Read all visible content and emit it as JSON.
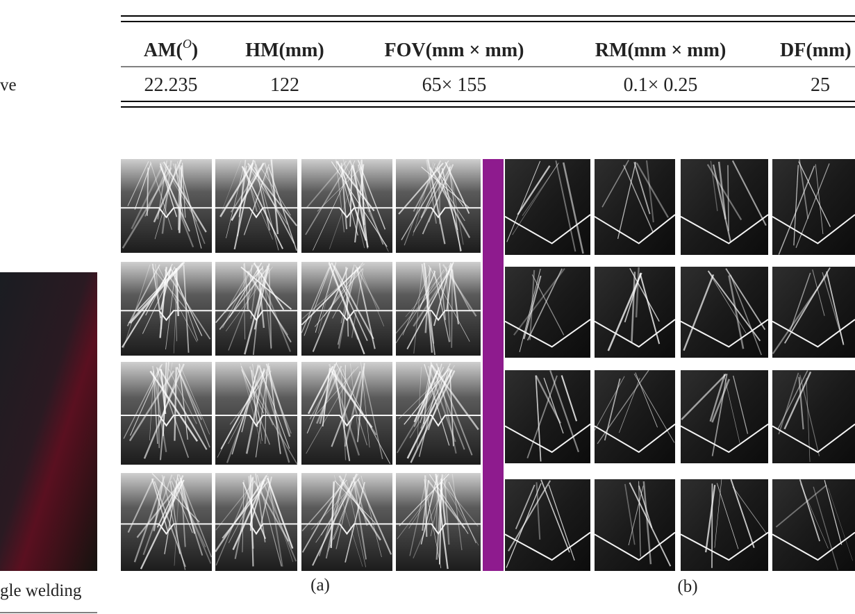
{
  "left_fragment_top": "ve",
  "left_fragment_caption": "gle welding",
  "table": {
    "headers": [
      {
        "text": "AM(",
        "sup": "O",
        "end": ")"
      },
      "HM(mm)",
      "FOV(mm × mm)",
      "RM(mm × mm)",
      "DF(mm)"
    ],
    "rows": [
      [
        "22.235",
        "122",
        "65× 155",
        "0.1× 0.25",
        "25"
      ]
    ]
  },
  "figure": {
    "captions": [
      "(a)",
      "(b)"
    ]
  }
}
